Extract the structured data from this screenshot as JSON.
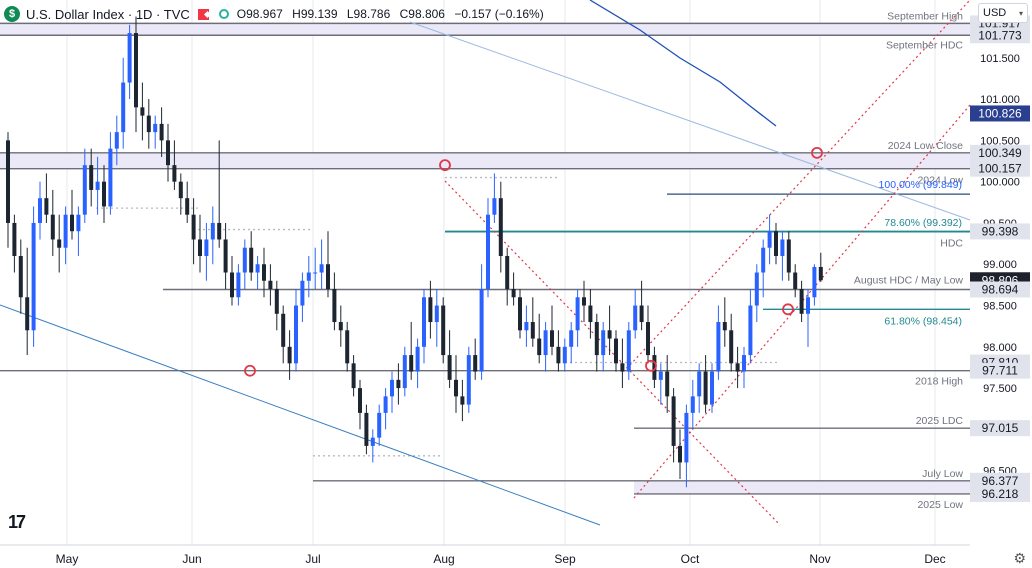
{
  "header": {
    "logo_letter": "$",
    "title": "U.S. Dollar Index · 1D · TVC",
    "open": "O98.967",
    "high": "H99.139",
    "low": "L98.786",
    "close": "C98.806",
    "change": "−0.157 (−0.16%)",
    "currency": "USD"
  },
  "colors": {
    "up": "#2962ff",
    "down": "#1c2530",
    "band_fill": "#ebe8f8",
    "band_stroke": "#6e6e78",
    "teal": "#23898f",
    "navy": "#2a4d7a",
    "red_dotted": "#e03848",
    "gray_line": "#8e8f96",
    "blue_line": "#3a7fc0"
  },
  "chart_data": {
    "type": "candlestick",
    "symbol": "U.S. Dollar Index",
    "interval": "1D",
    "ylim": [
      95.6,
      102.2
    ],
    "x_month_labels": [
      "May",
      "Jun",
      "Jul",
      "Aug",
      "Sep",
      "Oct",
      "Nov",
      "Dec"
    ],
    "y_ticks": [
      "96.500",
      "97.000",
      "97.500",
      "98.000",
      "98.500",
      "99.000",
      "99.500",
      "100.000",
      "100.500",
      "101.000",
      "101.500"
    ],
    "candles": [
      [
        100.5,
        100.6,
        99.2,
        99.5
      ],
      [
        99.5,
        99.6,
        98.9,
        99.1
      ],
      [
        99.1,
        99.3,
        98.4,
        98.6
      ],
      [
        98.6,
        99.2,
        97.9,
        98.2
      ],
      [
        98.2,
        99.7,
        98.0,
        99.5
      ],
      [
        99.5,
        100.0,
        99.3,
        99.8
      ],
      [
        99.8,
        100.1,
        99.5,
        99.6
      ],
      [
        99.6,
        99.9,
        99.1,
        99.3
      ],
      [
        99.3,
        99.6,
        98.9,
        99.2
      ],
      [
        99.2,
        99.7,
        99.0,
        99.6
      ],
      [
        99.6,
        99.9,
        99.3,
        99.4
      ],
      [
        99.4,
        99.7,
        99.1,
        99.6
      ],
      [
        99.6,
        100.4,
        99.5,
        100.2
      ],
      [
        100.2,
        100.4,
        99.7,
        99.9
      ],
      [
        99.9,
        100.3,
        99.6,
        100.0
      ],
      [
        100.0,
        100.2,
        99.5,
        99.7
      ],
      [
        99.7,
        100.6,
        99.6,
        100.4
      ],
      [
        100.4,
        100.8,
        100.2,
        100.6
      ],
      [
        100.6,
        101.5,
        100.4,
        101.2
      ],
      [
        101.2,
        101.9,
        101.0,
        101.8
      ],
      [
        101.8,
        102.0,
        100.6,
        100.9
      ],
      [
        100.9,
        101.2,
        100.5,
        100.8
      ],
      [
        100.8,
        101.0,
        100.4,
        100.6
      ],
      [
        100.6,
        100.8,
        100.4,
        100.7
      ],
      [
        100.7,
        100.9,
        100.3,
        100.5
      ],
      [
        100.5,
        100.7,
        100.0,
        100.2
      ],
      [
        100.2,
        100.5,
        99.9,
        100.0
      ],
      [
        100.0,
        100.1,
        99.6,
        99.8
      ],
      [
        99.8,
        100.0,
        99.5,
        99.6
      ],
      [
        99.6,
        99.8,
        99.0,
        99.3
      ],
      [
        99.3,
        99.6,
        98.9,
        99.1
      ],
      [
        99.1,
        99.5,
        98.8,
        99.3
      ],
      [
        99.3,
        99.7,
        99.0,
        99.5
      ],
      [
        99.5,
        100.5,
        99.2,
        99.3
      ],
      [
        99.3,
        99.5,
        98.7,
        98.9
      ],
      [
        98.9,
        99.1,
        98.5,
        98.6
      ],
      [
        98.6,
        99.0,
        98.5,
        98.9
      ],
      [
        98.9,
        99.3,
        98.7,
        99.2
      ],
      [
        99.2,
        99.4,
        98.8,
        98.9
      ],
      [
        98.9,
        99.1,
        98.7,
        99.0
      ],
      [
        99.0,
        99.2,
        98.6,
        98.8
      ],
      [
        98.8,
        99.0,
        98.5,
        98.7
      ],
      [
        98.7,
        98.8,
        98.2,
        98.4
      ],
      [
        98.4,
        98.5,
        97.8,
        98.0
      ],
      [
        98.0,
        98.2,
        97.6,
        97.8
      ],
      [
        97.8,
        98.7,
        97.7,
        98.5
      ],
      [
        98.5,
        98.9,
        98.3,
        98.8
      ],
      [
        98.8,
        99.1,
        98.6,
        98.9
      ],
      [
        98.9,
        99.2,
        98.7,
        98.9
      ],
      [
        98.9,
        99.3,
        98.7,
        99.0
      ],
      [
        99.0,
        99.4,
        98.6,
        98.7
      ],
      [
        98.7,
        98.9,
        98.2,
        98.3
      ],
      [
        98.3,
        98.5,
        98.0,
        98.2
      ],
      [
        98.2,
        98.3,
        97.7,
        97.8
      ],
      [
        97.8,
        97.9,
        97.4,
        97.5
      ],
      [
        97.5,
        97.6,
        97.0,
        97.2
      ],
      [
        97.2,
        97.3,
        96.7,
        96.8
      ],
      [
        96.8,
        97.0,
        96.6,
        96.9
      ],
      [
        96.9,
        97.3,
        96.8,
        97.2
      ],
      [
        97.2,
        97.5,
        97.0,
        97.4
      ],
      [
        97.4,
        97.7,
        97.2,
        97.6
      ],
      [
        97.6,
        97.8,
        97.3,
        97.5
      ],
      [
        97.5,
        98.0,
        97.4,
        97.9
      ],
      [
        97.9,
        98.3,
        97.6,
        97.7
      ],
      [
        97.7,
        98.1,
        97.5,
        98.0
      ],
      [
        98.0,
        98.7,
        97.8,
        98.6
      ],
      [
        98.6,
        98.8,
        98.1,
        98.3
      ],
      [
        98.3,
        98.7,
        98.0,
        98.5
      ],
      [
        98.5,
        98.6,
        97.8,
        97.9
      ],
      [
        97.9,
        98.2,
        97.5,
        97.6
      ],
      [
        97.6,
        97.9,
        97.2,
        97.4
      ],
      [
        97.4,
        97.6,
        97.1,
        97.3
      ],
      [
        97.3,
        98.0,
        97.2,
        97.9
      ],
      [
        97.9,
        98.1,
        97.6,
        97.7
      ],
      [
        97.7,
        99.0,
        97.6,
        98.7
      ],
      [
        98.7,
        99.8,
        98.6,
        99.6
      ],
      [
        99.6,
        100.1,
        99.5,
        99.8
      ],
      [
        99.8,
        100.0,
        98.9,
        99.1
      ],
      [
        99.1,
        99.2,
        98.5,
        98.7
      ],
      [
        98.7,
        98.9,
        98.5,
        98.6
      ],
      [
        98.6,
        98.7,
        98.1,
        98.2
      ],
      [
        98.2,
        98.5,
        98.0,
        98.3
      ],
      [
        98.3,
        98.6,
        98.0,
        98.1
      ],
      [
        98.1,
        98.4,
        97.8,
        97.9
      ],
      [
        97.9,
        98.3,
        97.7,
        98.2
      ],
      [
        98.2,
        98.5,
        97.9,
        98.0
      ],
      [
        98.0,
        98.2,
        97.7,
        97.8
      ],
      [
        97.8,
        98.1,
        97.7,
        98.0
      ],
      [
        98.0,
        98.3,
        97.8,
        98.2
      ],
      [
        98.2,
        98.7,
        98.0,
        98.6
      ],
      [
        98.6,
        98.8,
        98.3,
        98.5
      ],
      [
        98.5,
        98.7,
        98.1,
        98.3
      ],
      [
        98.3,
        98.4,
        97.7,
        97.9
      ],
      [
        97.9,
        98.3,
        97.7,
        98.2
      ],
      [
        98.2,
        98.5,
        97.9,
        98.1
      ],
      [
        98.1,
        98.2,
        97.7,
        97.8
      ],
      [
        97.8,
        98.1,
        97.5,
        97.7
      ],
      [
        97.7,
        98.3,
        97.6,
        98.2
      ],
      [
        98.2,
        98.7,
        98.1,
        98.5
      ],
      [
        98.5,
        98.8,
        98.2,
        98.3
      ],
      [
        98.3,
        98.5,
        97.8,
        97.9
      ],
      [
        97.9,
        98.0,
        97.5,
        97.6
      ],
      [
        97.6,
        97.8,
        97.3,
        97.7
      ],
      [
        97.7,
        97.9,
        97.2,
        97.4
      ],
      [
        97.4,
        97.5,
        96.6,
        96.8
      ],
      [
        96.8,
        97.0,
        96.4,
        96.6
      ],
      [
        96.6,
        97.3,
        96.3,
        97.2
      ],
      [
        97.2,
        97.6,
        97.0,
        97.4
      ],
      [
        97.4,
        97.8,
        97.2,
        97.7
      ],
      [
        97.7,
        97.9,
        97.2,
        97.3
      ],
      [
        97.3,
        97.8,
        97.2,
        97.7
      ],
      [
        97.7,
        98.5,
        97.6,
        98.3
      ],
      [
        98.3,
        98.6,
        98.0,
        98.2
      ],
      [
        98.2,
        98.4,
        97.7,
        97.8
      ],
      [
        97.8,
        98.0,
        97.5,
        97.7
      ],
      [
        97.7,
        98.0,
        97.5,
        97.9
      ],
      [
        97.9,
        98.7,
        97.8,
        98.5
      ],
      [
        98.5,
        99.0,
        98.3,
        98.9
      ],
      [
        98.9,
        99.3,
        98.6,
        99.2
      ],
      [
        99.2,
        99.6,
        99.0,
        99.4
      ],
      [
        99.4,
        99.5,
        99.0,
        99.1
      ],
      [
        99.1,
        99.4,
        98.8,
        99.3
      ],
      [
        99.3,
        99.4,
        98.8,
        98.9
      ],
      [
        98.9,
        99.0,
        98.6,
        98.7
      ],
      [
        98.7,
        98.8,
        98.3,
        98.4
      ],
      [
        98.4,
        98.7,
        98.0,
        98.6
      ],
      [
        98.6,
        99.0,
        98.5,
        98.967
      ],
      [
        98.967,
        99.139,
        98.786,
        98.806
      ]
    ],
    "horizontal_levels": [
      {
        "label": "September High",
        "value": 101.917,
        "tag": "101.917"
      },
      {
        "label": "September HDC",
        "value": 101.773,
        "tag": "101.773"
      },
      {
        "label": "2024 Low Close",
        "value": 100.349,
        "tag": "100.349"
      },
      {
        "label": "2024 Low",
        "value": 100.157,
        "tag": "100.157"
      },
      {
        "label": "HDC",
        "value": 99.398,
        "tag": "99.398"
      },
      {
        "label": "August HDC / May Low",
        "value": 98.694,
        "tag": "98.694"
      },
      {
        "label": "2018 High",
        "value": 97.711,
        "tag": "97.711"
      },
      {
        "label": "2025 LDC",
        "value": 97.015,
        "tag": "97.015"
      },
      {
        "label": "July Low",
        "value": 96.377,
        "tag": "96.377"
      },
      {
        "label": "2025 Low",
        "value": 96.218,
        "tag": "96.218"
      }
    ],
    "fib_levels": [
      {
        "label": "100.00% (99.849)",
        "value": 99.849
      },
      {
        "label": "78.60% (99.392)",
        "value": 99.392
      },
      {
        "label": "61.80% (98.454)",
        "value": 98.454
      }
    ],
    "price_tags": [
      {
        "text": "100.826",
        "value": 100.826,
        "style": "navy"
      },
      {
        "text": "98.806",
        "value": 98.806,
        "style": "dark"
      },
      {
        "text": "97.810",
        "value": 97.81,
        "style": "gray"
      }
    ]
  }
}
